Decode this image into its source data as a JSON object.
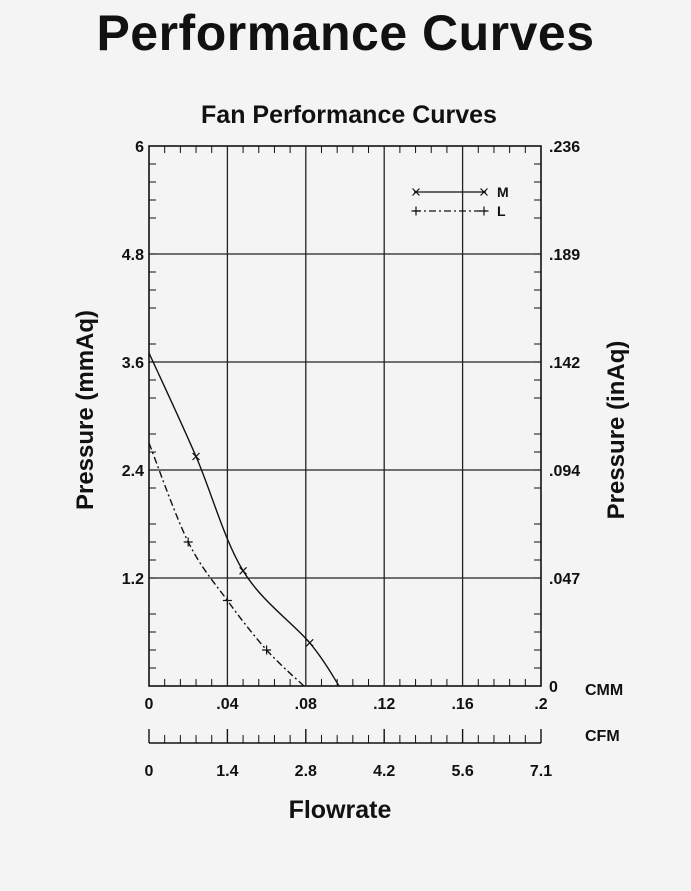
{
  "page_title": "Performance Curves",
  "chart_data": {
    "type": "line",
    "title": "Fan Performance Curves",
    "xlabel": "Flowrate",
    "ylabel_left": "Pressure  (mmAq)",
    "ylabel_right": "Pressure  (inAq)",
    "x_unit_primary": "CMM",
    "x_unit_secondary": "CFM",
    "xlim": [
      0,
      0.2
    ],
    "ylim": [
      0,
      6
    ],
    "x_ticks": [
      "0",
      ".04",
      ".08",
      ".12",
      ".16",
      ".2"
    ],
    "x_secondary_ticks": [
      "0",
      "1.4",
      "2.8",
      "4.2",
      "5.6",
      "7.1"
    ],
    "y_ticks_left": [
      "0",
      "1.2",
      "2.4",
      "3.6",
      "4.8",
      "6"
    ],
    "y_ticks_right": [
      "0",
      ".047",
      ".094",
      ".142",
      ".189",
      ".236"
    ],
    "grid": true,
    "legend_position": "top-right",
    "series": [
      {
        "name": "M",
        "style": "solid",
        "marker": "x",
        "x": [
          0,
          0.024,
          0.048,
          0.082,
          0.097
        ],
        "y": [
          3.7,
          2.55,
          1.28,
          0.48,
          0
        ],
        "marker_indices": [
          1,
          2,
          3
        ]
      },
      {
        "name": "L",
        "style": "dash-dot",
        "marker": "+",
        "x": [
          0,
          0.02,
          0.04,
          0.06,
          0.079
        ],
        "y": [
          2.7,
          1.6,
          0.95,
          0.4,
          0
        ],
        "marker_indices": [
          1,
          2,
          3
        ]
      }
    ]
  }
}
